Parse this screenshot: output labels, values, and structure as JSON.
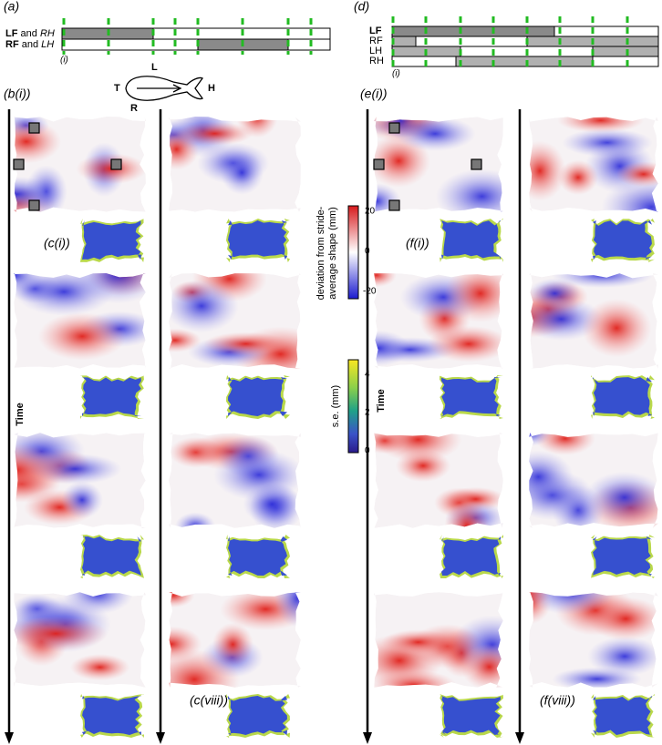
{
  "panel_a": {
    "label": "(a)",
    "row1": [
      "LF",
      "and",
      "RH"
    ],
    "row2": [
      "RF",
      "and",
      "LH"
    ],
    "sub": "(i)"
  },
  "fish": {
    "left": "L",
    "tail": "T",
    "head": "H",
    "right": "R"
  },
  "panel_b": {
    "label": "(b(i))",
    "time": "Time",
    "first": "(c(i))",
    "last": "(c(viii))"
  },
  "panel_d": {
    "label": "(d)",
    "rows": [
      "LF",
      "RF",
      "LH",
      "RH"
    ],
    "sub": "(i)"
  },
  "panel_e": {
    "label": "(e(i))",
    "time": "Time",
    "first": "(f(i))",
    "last": "(f(viii))"
  },
  "colorbar_dev": {
    "label": [
      "deviation from stride-",
      "average shape (mm)"
    ],
    "ticks": [
      "20",
      "0",
      "-20"
    ]
  },
  "colorbar_se": {
    "label": "s.e. (mm)",
    "ticks": [
      "4",
      "2",
      "0"
    ]
  }
}
